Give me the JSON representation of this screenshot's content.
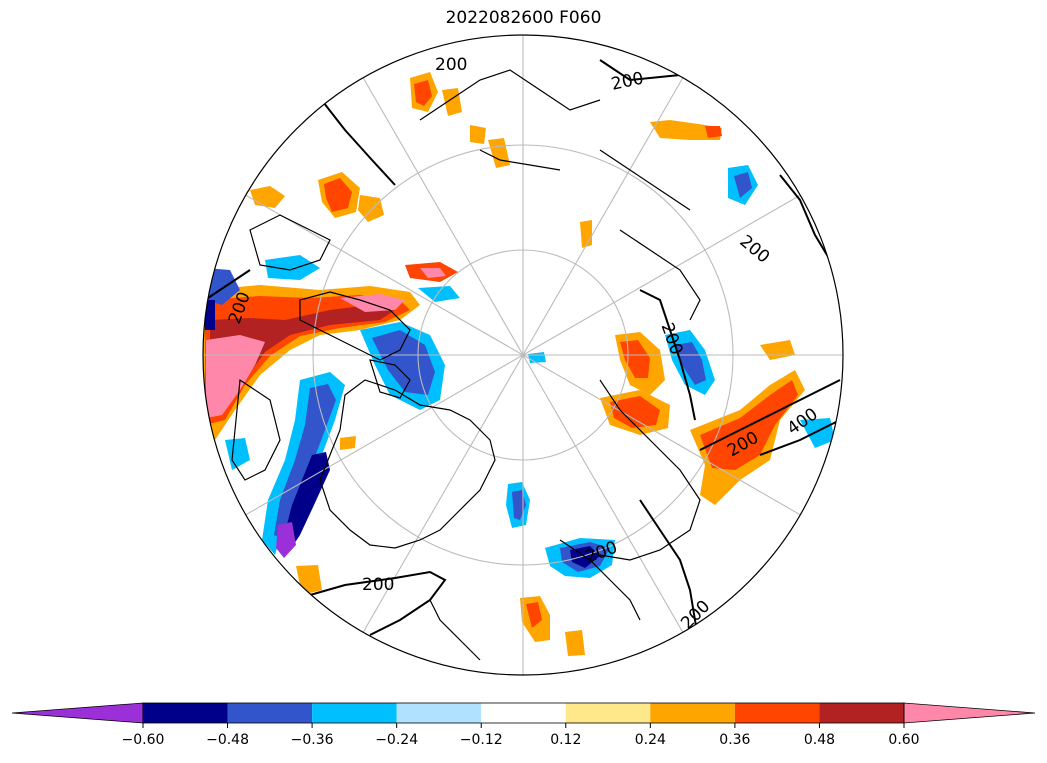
{
  "title": "2022082600 F060",
  "map": {
    "projection": "north-polar-stereographic",
    "contour_labels": [
      "200",
      "200",
      "200",
      "200",
      "200",
      "400",
      "200",
      "200",
      "200",
      "200"
    ]
  },
  "colorbar": {
    "levels": [
      "-0.60",
      "-0.48",
      "-0.36",
      "-0.24",
      "-0.12",
      "0.12",
      "0.24",
      "0.36",
      "0.48",
      "0.60"
    ],
    "colors": [
      "#9b30d9",
      "#00008b",
      "#3355cc",
      "#00bfff",
      "#b0e2ff",
      "#ffffff",
      "#ffe88a",
      "#ffa500",
      "#ff4500",
      "#b22222",
      "#ff88aa"
    ],
    "extend": "both"
  }
}
